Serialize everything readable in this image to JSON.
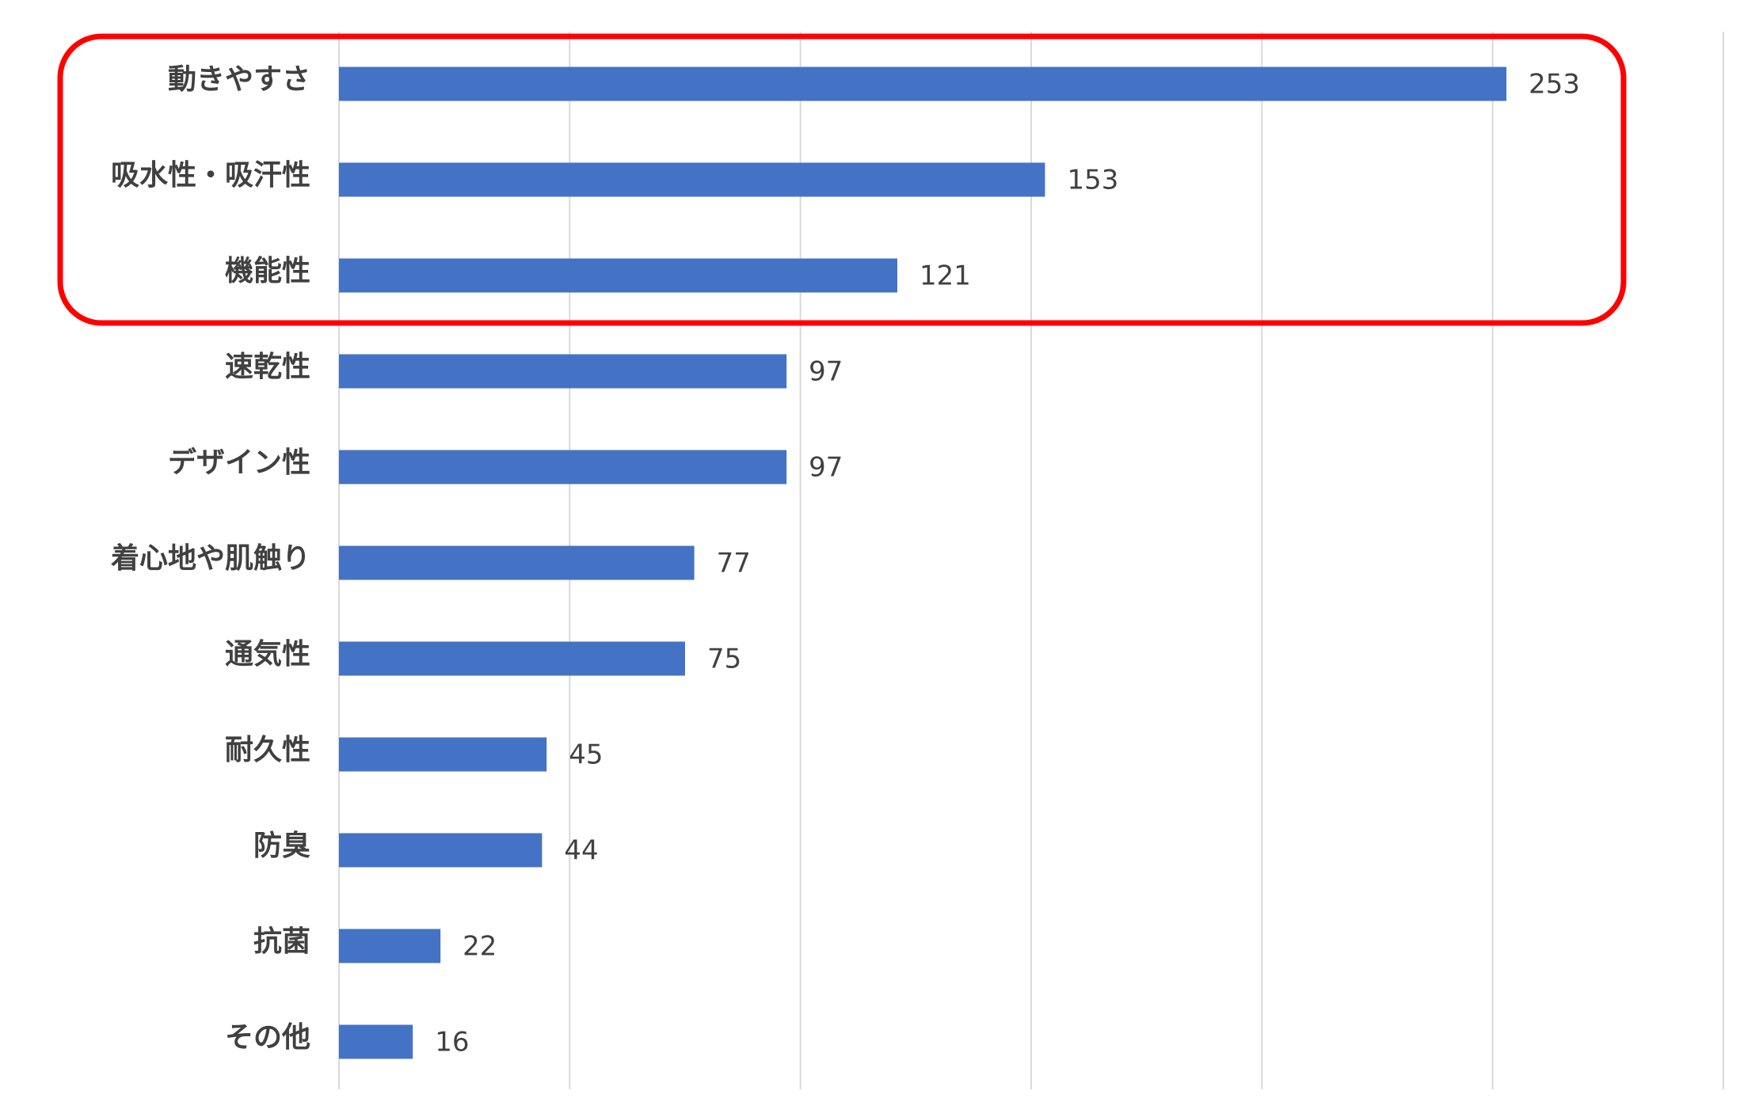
{
  "chart_data": {
    "type": "bar",
    "orientation": "horizontal",
    "categories": [
      "動きやすさ",
      "吸水性・吸汗性",
      "機能性",
      "速乾性",
      "デザイン性",
      "着心地や肌触り",
      "通気性",
      "耐久性",
      "防臭",
      "抗菌",
      "その他"
    ],
    "values": [
      253,
      153,
      121,
      97,
      97,
      77,
      75,
      45,
      44,
      22,
      16
    ],
    "title": "",
    "xlabel": "",
    "ylabel": "",
    "xlim": [
      0,
      300
    ],
    "grid": true,
    "legend": "none",
    "data_labels": true,
    "highlight": {
      "categories": [
        "動きやすさ",
        "吸水性・吸汗性",
        "機能性"
      ],
      "color": "#ff0000"
    },
    "colors": {
      "bar": "#4472c4",
      "grid": "#d9d9d9",
      "text": "#404040"
    }
  }
}
